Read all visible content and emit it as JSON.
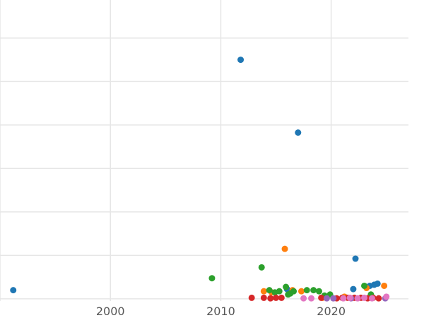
{
  "chart_data": {
    "type": "scatter",
    "title": "",
    "xlabel": "",
    "ylabel": "",
    "xlim": [
      1990,
      2027
    ],
    "ylim": [
      -0.2,
      27.5
    ],
    "x_ticks": [
      2000,
      2010,
      2020
    ],
    "x_tick_labels": [
      "2000",
      "2010",
      "2020"
    ],
    "y_ticks": [
      0,
      4,
      8,
      12,
      16,
      20,
      24
    ],
    "grid": true,
    "legend": "none",
    "series": [
      {
        "color": "#1f77b4",
        "points": [
          [
            1991.2,
            0.8
          ],
          [
            2011.8,
            22.0
          ],
          [
            2017.0,
            15.3
          ],
          [
            2022.2,
            3.7
          ],
          [
            2022.0,
            0.9
          ],
          [
            2023.5,
            1.2
          ],
          [
            2023.9,
            1.3
          ],
          [
            2024.2,
            1.4
          ],
          [
            2016.0,
            0.9
          ]
        ]
      },
      {
        "color": "#ff7f0e",
        "points": [
          [
            2015.8,
            4.6
          ],
          [
            2013.9,
            0.7
          ],
          [
            2014.6,
            0.6
          ],
          [
            2016.5,
            0.8
          ],
          [
            2017.3,
            0.7
          ],
          [
            2023.2,
            1.0
          ],
          [
            2024.8,
            1.2
          ],
          [
            2019.2,
            0.1
          ],
          [
            2021.2,
            0.2
          ]
        ]
      },
      {
        "color": "#2ca02c",
        "points": [
          [
            2009.2,
            1.9
          ],
          [
            2013.7,
            2.9
          ],
          [
            2014.4,
            0.8
          ],
          [
            2014.9,
            0.6
          ],
          [
            2015.3,
            0.7
          ],
          [
            2015.9,
            1.1
          ],
          [
            2016.3,
            0.5
          ],
          [
            2016.6,
            0.7
          ],
          [
            2017.8,
            0.8
          ],
          [
            2018.4,
            0.8
          ],
          [
            2018.9,
            0.7
          ],
          [
            2019.4,
            0.3
          ],
          [
            2019.9,
            0.4
          ],
          [
            2023.0,
            1.2
          ],
          [
            2023.6,
            0.4
          ],
          [
            2016.1,
            0.4
          ]
        ]
      },
      {
        "color": "#d62728",
        "points": [
          [
            2012.8,
            0.1
          ],
          [
            2013.9,
            0.1
          ],
          [
            2014.5,
            0.05
          ],
          [
            2015.0,
            0.1
          ],
          [
            2015.5,
            0.1
          ],
          [
            2019.1,
            0.1
          ],
          [
            2020.5,
            0.05
          ],
          [
            2021.0,
            0.1
          ],
          [
            2021.5,
            0.1
          ],
          [
            2022.1,
            0.1
          ],
          [
            2022.7,
            0.1
          ],
          [
            2023.3,
            0.05
          ],
          [
            2023.8,
            0.1
          ],
          [
            2024.3,
            0.05
          ]
        ]
      },
      {
        "color": "#9467bd",
        "points": [
          [
            2019.6,
            0.05
          ],
          [
            2020.2,
            0.05
          ],
          [
            2021.8,
            0.05
          ],
          [
            2024.9,
            0.05
          ]
        ]
      },
      {
        "color": "#e377c2",
        "points": [
          [
            2017.5,
            0.05
          ],
          [
            2018.2,
            0.05
          ],
          [
            2021.1,
            0.05
          ],
          [
            2021.7,
            0.1
          ],
          [
            2022.4,
            0.05
          ],
          [
            2023.0,
            0.1
          ],
          [
            2023.7,
            0.05
          ],
          [
            2025.0,
            0.2
          ]
        ]
      }
    ]
  }
}
